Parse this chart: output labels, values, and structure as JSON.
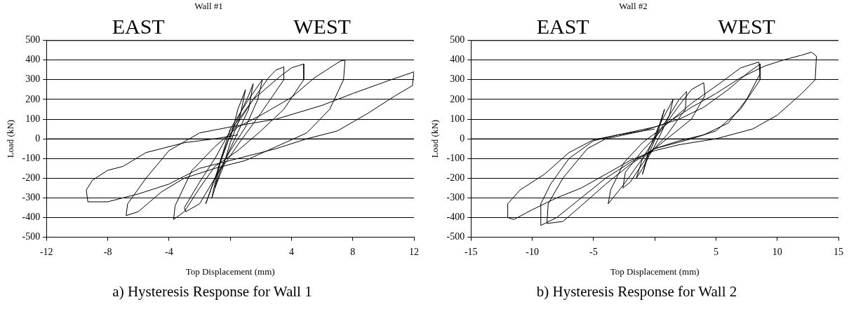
{
  "chart_data": [
    {
      "type": "line",
      "title": "Wall #1",
      "xlabel": "Top Displacement (mm)",
      "ylabel": "Load (kN)",
      "annotations": [
        "EAST",
        "WEST",
        "a)  Hysteresis Response for Wall 1"
      ],
      "xlim": [
        -12,
        12
      ],
      "xticks": [
        -12,
        -8,
        -4,
        {
          "value": 0,
          "label": null
        },
        4,
        8,
        12
      ],
      "ylim": [
        -500,
        500
      ],
      "yticks": [
        -500,
        -400,
        -300,
        -200,
        -100,
        0,
        100,
        200,
        300,
        400,
        500
      ],
      "grid": "y",
      "legend": false,
      "marker": "none",
      "line_style": "solid",
      "series": [
        {
          "color": "#000000",
          "x": [
            0,
            0.5,
            1,
            0.6,
            0,
            -0.5,
            -1,
            -0.6,
            0,
            1.2,
            1.5,
            1.2,
            0.3,
            -0.6,
            -1.2,
            -0.8,
            0,
            1.2,
            2.1,
            1.8,
            1,
            0,
            -1,
            -1.6,
            -1,
            0,
            1.5,
            2.5,
            3,
            3.5,
            3.5,
            2,
            0.5,
            -1,
            -2,
            -2.9,
            -3,
            -2,
            -1,
            0,
            1.5,
            3.3,
            4,
            4.8,
            4.8,
            3.5,
            2,
            0.5,
            -1,
            -2,
            -3,
            -3.7,
            -3.6,
            -2.5,
            -1,
            0.5,
            2,
            4,
            5.5,
            6.5,
            7.2,
            7.5,
            7.4,
            6.5,
            5,
            3,
            1,
            -1,
            -3,
            -4.5,
            -6,
            -6.8,
            -6.7,
            -5.5,
            -4,
            -2,
            0,
            3,
            6,
            8,
            10.5,
            12,
            11.9,
            10.8,
            9,
            7,
            5,
            3,
            0.5,
            -2,
            -4,
            -6,
            -8,
            -9.3,
            -9.4,
            -9,
            -8,
            -7,
            -5.5,
            -3,
            -1,
            0.5
          ],
          "values": [
            0,
            150,
            250,
            100,
            -20,
            -150,
            -250,
            -100,
            20,
            220,
            280,
            150,
            0,
            -150,
            -300,
            -150,
            50,
            200,
            300,
            200,
            60,
            -60,
            -200,
            -330,
            -200,
            20,
            200,
            310,
            350,
            365,
            300,
            130,
            -30,
            -200,
            -330,
            -370,
            -350,
            -220,
            -100,
            40,
            200,
            320,
            360,
            380,
            300,
            150,
            40,
            -60,
            -140,
            -250,
            -370,
            -410,
            -340,
            -160,
            -40,
            60,
            120,
            210,
            310,
            360,
            395,
            400,
            300,
            150,
            30,
            -40,
            -110,
            -150,
            -200,
            -270,
            -370,
            -390,
            -330,
            -200,
            -60,
            30,
            60,
            100,
            170,
            230,
            300,
            340,
            270,
            220,
            130,
            40,
            0,
            -50,
            -100,
            -150,
            -230,
            -280,
            -320,
            -320,
            -260,
            -210,
            -160,
            -140,
            -70,
            -20,
            0,
            20
          ]
        }
      ]
    },
    {
      "type": "line",
      "title": "Wall #2",
      "xlabel": "Top Displacement (mm)",
      "ylabel": "Load (kN)",
      "annotations": [
        "EAST",
        "WEST",
        "b)  Hysteresis Response for Wall 2"
      ],
      "xlim": [
        -15,
        15
      ],
      "xticks": [
        -15,
        -10,
        -5,
        {
          "value": 0,
          "label": null
        },
        5,
        10,
        15
      ],
      "ylim": [
        -500,
        500
      ],
      "yticks": [
        -500,
        -400,
        -300,
        -200,
        -100,
        0,
        100,
        200,
        300,
        400,
        500
      ],
      "grid": "y",
      "legend": false,
      "marker": "none",
      "line_style": "solid",
      "series": [
        {
          "color": "#000000",
          "x": [
            0,
            0.8,
            0.3,
            -0.5,
            -1,
            -0.5,
            0.3,
            1.5,
            1.2,
            0.3,
            -1,
            -1.5,
            -1,
            0.5,
            2,
            2.6,
            2.5,
            1,
            -0.5,
            -2,
            -2.6,
            -2.4,
            -1,
            0.5,
            2,
            3,
            4,
            4.1,
            3,
            1,
            -1,
            -2.5,
            -3.8,
            -3.6,
            -2.5,
            -1,
            0.5,
            3,
            5.5,
            7,
            8.5,
            8.6,
            7.5,
            6,
            4,
            2,
            0,
            -2,
            -4,
            -6,
            -8,
            -9.3,
            -9.3,
            -8.5,
            -7,
            -5,
            -3,
            0,
            2,
            4,
            6,
            7.5,
            8.6,
            8.6,
            7,
            5,
            3,
            0,
            -2,
            -4,
            -6,
            -7.5,
            -8.8,
            -8.7,
            -7.5,
            -5.5,
            -4,
            -1,
            1,
            3,
            5,
            7,
            9,
            10.5,
            12,
            12.8,
            13.2,
            13.1,
            12,
            10,
            8,
            5,
            2,
            0,
            -2,
            -4,
            -6,
            -8,
            -10,
            -11.5,
            -12,
            -12,
            -11,
            -9,
            -7,
            -5,
            -3,
            -1,
            0
          ],
          "values": [
            0,
            150,
            40,
            -80,
            -180,
            -60,
            60,
            200,
            120,
            0,
            -150,
            -200,
            -100,
            50,
            200,
            240,
            150,
            20,
            -80,
            -220,
            -250,
            -170,
            -60,
            40,
            170,
            250,
            285,
            220,
            100,
            0,
            -100,
            -230,
            -330,
            -260,
            -120,
            -20,
            50,
            180,
            290,
            360,
            390,
            330,
            200,
            80,
            20,
            -10,
            -50,
            -120,
            -200,
            -300,
            -400,
            -440,
            -330,
            -230,
            -100,
            -10,
            20,
            60,
            100,
            160,
            250,
            330,
            380,
            300,
            150,
            40,
            0,
            -50,
            -130,
            -230,
            -340,
            -420,
            -430,
            -330,
            -200,
            -50,
            0,
            40,
            80,
            160,
            230,
            310,
            370,
            400,
            425,
            440,
            420,
            300,
            230,
            120,
            50,
            0,
            -30,
            -60,
            -110,
            -180,
            -250,
            -300,
            -360,
            -410,
            -400,
            -330,
            -260,
            -180,
            -70,
            -5,
            20,
            40,
            50
          ]
        }
      ]
    }
  ]
}
